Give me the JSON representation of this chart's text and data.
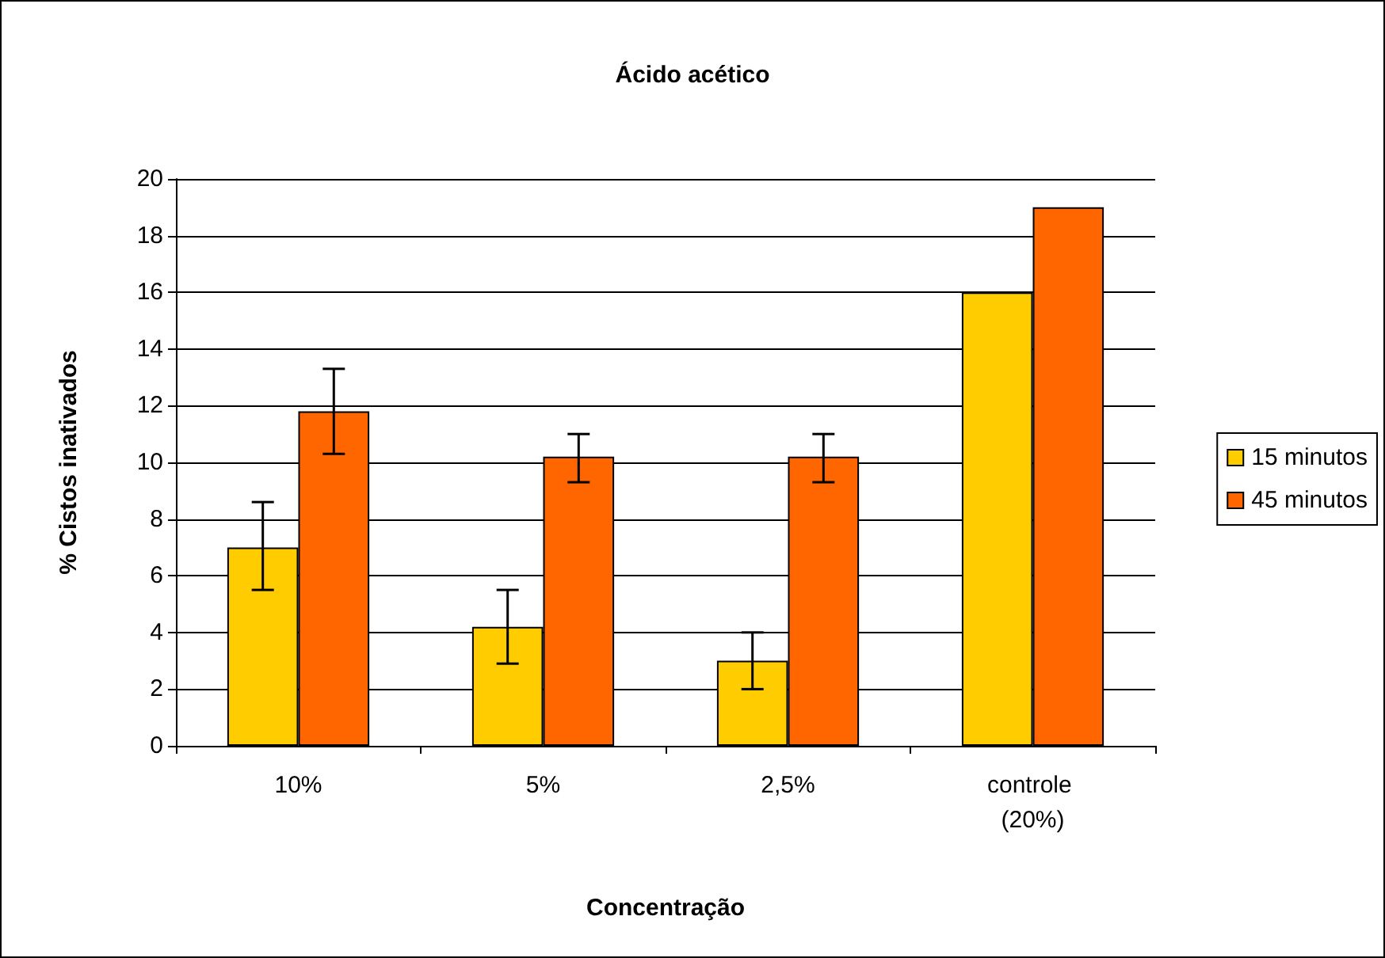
{
  "chart_data": {
    "type": "bar",
    "title": "Ácido acético",
    "xlabel": "Concentração",
    "ylabel": "% Cistos inativados",
    "categories": [
      "10%",
      "5%",
      "2,5%",
      "controle (20%)"
    ],
    "series": [
      {
        "name": "15 minutos",
        "color": "#ffcc00",
        "values": [
          7.0,
          4.2,
          3.0,
          16.0
        ],
        "errors": [
          [
            5.5,
            8.6
          ],
          [
            2.9,
            5.5
          ],
          [
            2.0,
            4.0
          ],
          null
        ]
      },
      {
        "name": "45 minutos",
        "color": "#ff6600",
        "values": [
          11.8,
          10.2,
          10.2,
          19.0
        ],
        "errors": [
          [
            10.3,
            13.3
          ],
          [
            9.3,
            11.0
          ],
          [
            9.3,
            11.0
          ],
          null
        ]
      }
    ],
    "ylim": [
      0,
      20
    ],
    "yticks": [
      0,
      2,
      4,
      6,
      8,
      10,
      12,
      14,
      16,
      18,
      20
    ],
    "grid": "y",
    "legend": "right"
  }
}
